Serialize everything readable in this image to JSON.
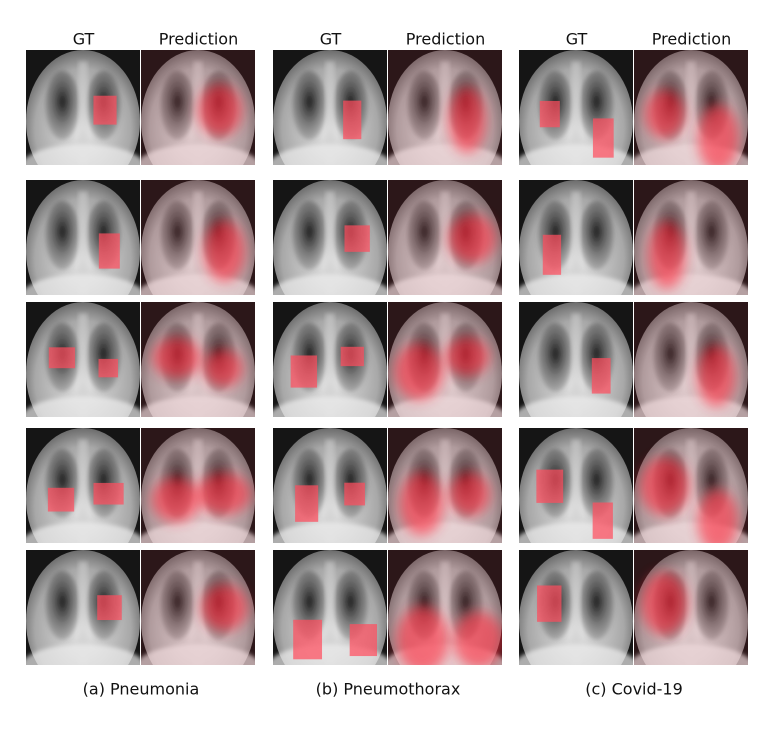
{
  "panels": [
    {
      "headers": [
        "GT",
        "Prediction"
      ],
      "caption": "(a) Pneumonia"
    },
    {
      "headers": [
        "GT",
        "Prediction"
      ],
      "caption": "(b) Pneumothorax"
    },
    {
      "headers": [
        "GT",
        "Prediction"
      ],
      "caption": "(c) Covid-19"
    }
  ]
}
